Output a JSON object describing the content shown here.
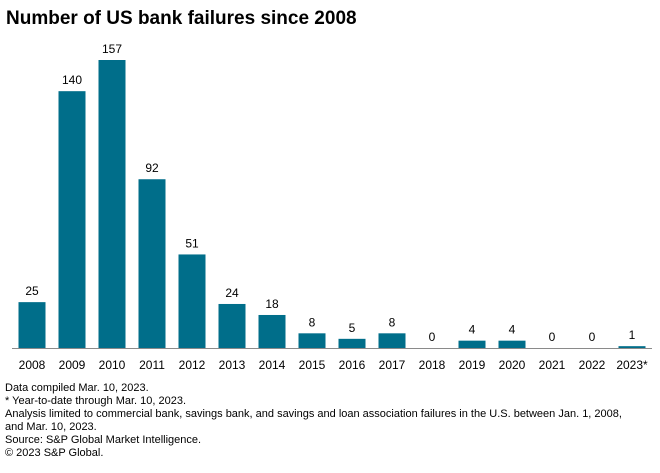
{
  "chart_data": {
    "type": "bar",
    "title": "Number of US bank failures since 2008",
    "xlabel": "",
    "ylabel": "",
    "categories": [
      "2008",
      "2009",
      "2010",
      "2011",
      "2012",
      "2013",
      "2014",
      "2015",
      "2016",
      "2017",
      "2018",
      "2019",
      "2020",
      "2021",
      "2022",
      "2023*"
    ],
    "values": [
      25,
      140,
      157,
      92,
      51,
      24,
      18,
      8,
      5,
      8,
      0,
      4,
      4,
      0,
      0,
      1
    ],
    "ylim": [
      0,
      157
    ],
    "grid": false,
    "legend": "none",
    "bar_color": "#006e8a"
  },
  "notes": [
    "Data compiled Mar. 10, 2023.",
    "* Year-to-date through Mar. 10, 2023.",
    "Analysis limited to commercial bank, savings bank, and savings and loan association failures in the U.S. between Jan. 1, 2008,",
    "and Mar. 10, 2023.",
    "Source: S&P Global Market Intelligence.",
    "© 2023 S&P Global."
  ]
}
